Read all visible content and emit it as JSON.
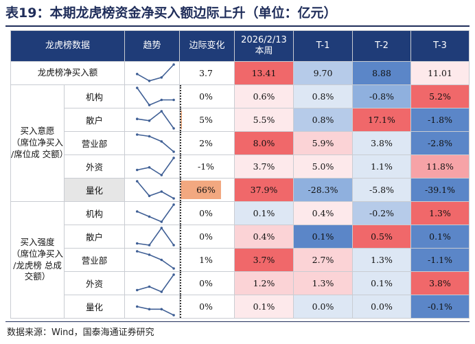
{
  "title": "表19：本期龙虎榜资金净买入额边际上升（单位：亿元）",
  "header": {
    "col_name": "龙虎榜数据",
    "col_trend": "趋势",
    "col_change": "边际变化",
    "col_current": "2026/2/13\n本周",
    "col_t1": "T-1",
    "col_t2": "T-2",
    "col_t3": "T-3"
  },
  "groups": {
    "net_buy": "龙虎榜净买入额",
    "intent": "买入意愿\n（席位净买入\n/席位成\n交额）",
    "strength": "买入强度\n（席位净买入\n/龙虎榜\n总成交额）"
  },
  "colors": {
    "header": "#1f3c78",
    "strong_red": "#f0686a",
    "mid_red": "#f6a3a7",
    "light_red": "#fbd3d6",
    "pale_red": "#fde9eb",
    "strong_blue": "#5b86c8",
    "mid_blue": "#8fb0de",
    "light_blue": "#b6cbe9",
    "pale_blue": "#dde7f4"
  },
  "rows": [
    {
      "label": "龙虎榜净买入额",
      "trend": [
        0.45,
        0.05,
        0.25,
        1.0
      ],
      "change": "3.7",
      "bar": 0,
      "values": [
        "13.41",
        "9.70",
        "8.88",
        "11.01"
      ],
      "bg": [
        "#f0686a",
        "#b6cbe9",
        "#5b86c8",
        "#fde9eb"
      ]
    },
    {
      "label": "机构",
      "trend": [
        1.0,
        0.0,
        0.3,
        0.3
      ],
      "change": "0%",
      "bar": 0,
      "values": [
        "0.6%",
        "0.8%",
        "-0.8%",
        "5.2%"
      ],
      "bg": [
        "#fde9eb",
        "#dde7f4",
        "#8fb0de",
        "#f0686a"
      ]
    },
    {
      "label": "散户",
      "trend": [
        0.55,
        0.45,
        1.0,
        0.0
      ],
      "change": "5%",
      "bar": 2,
      "values": [
        "5.5%",
        "0.8%",
        "17.1%",
        "-1.8%"
      ],
      "bg": [
        "#fde9eb",
        "#b6cbe9",
        "#f0686a",
        "#5b86c8"
      ]
    },
    {
      "label": "营业部",
      "trend": [
        1.0,
        0.9,
        0.6,
        0.0
      ],
      "change": "2%",
      "bar": 0,
      "values": [
        "8.0%",
        "5.9%",
        "3.8%",
        "-2.8%"
      ],
      "bg": [
        "#f0686a",
        "#fbd3d6",
        "#dde7f4",
        "#5b86c8"
      ]
    },
    {
      "label": "外资",
      "trend": [
        0.3,
        0.45,
        0.0,
        1.0
      ],
      "change": "-1%",
      "bar": 0,
      "values": [
        "3.7%",
        "5.0%",
        "1.1%",
        "11.8%"
      ],
      "bg": [
        "#fde9eb",
        "#fde9eb",
        "#dde7f4",
        "#f6a3a7"
      ]
    },
    {
      "label": "量化",
      "trend": [
        1.0,
        0.15,
        0.4,
        0.0
      ],
      "change": "66%",
      "bar": 75,
      "values": [
        "37.9%",
        "-28.3%",
        "-5.8%",
        "-39.1%"
      ],
      "bg": [
        "#f0686a",
        "#8fb0de",
        "#dde7f4",
        "#5b86c8"
      ]
    },
    {
      "label": "机构",
      "trend": [
        0.6,
        0.3,
        0.0,
        1.0
      ],
      "change": "0%",
      "bar": 0,
      "values": [
        "0.1%",
        "0.4%",
        "-0.2%",
        "1.3%"
      ],
      "bg": [
        "#dde7f4",
        "#fde9eb",
        "#b6cbe9",
        "#f0686a"
      ]
    },
    {
      "label": "散户",
      "trend": [
        0.1,
        0.0,
        1.0,
        0.0
      ],
      "change": "0%",
      "bar": 0,
      "values": [
        "0.4%",
        "0.1%",
        "0.5%",
        "0.1%"
      ],
      "bg": [
        "#fbd3d6",
        "#5b86c8",
        "#f0686a",
        "#5b86c8"
      ]
    },
    {
      "label": "营业部",
      "trend": [
        1.0,
        0.8,
        0.5,
        0.0
      ],
      "change": "1%",
      "bar": 0,
      "values": [
        "3.7%",
        "2.7%",
        "1.3%",
        "-1.1%"
      ],
      "bg": [
        "#f0686a",
        "#fbd3d6",
        "#dde7f4",
        "#5b86c8"
      ]
    },
    {
      "label": "外资",
      "trend": [
        0.1,
        0.3,
        0.0,
        1.0
      ],
      "change": "0%",
      "bar": 0,
      "values": [
        "1.2%",
        "1.3%",
        "0.1%",
        "3.8%"
      ],
      "bg": [
        "#fbd3d6",
        "#fbd3d6",
        "#dde7f4",
        "#f0686a"
      ]
    },
    {
      "label": "量化",
      "trend": [
        0.5,
        0.35,
        0.35,
        0.0
      ],
      "change": "0%",
      "bar": 0,
      "values": [
        "0.1%",
        "0.0%",
        "0.0%",
        "-0.1%"
      ],
      "bg": [
        "#fde9eb",
        "#dde7f4",
        "#dde7f4",
        "#5b86c8"
      ]
    }
  ],
  "source": "数据来源：Wind，国泰海通证券研究"
}
